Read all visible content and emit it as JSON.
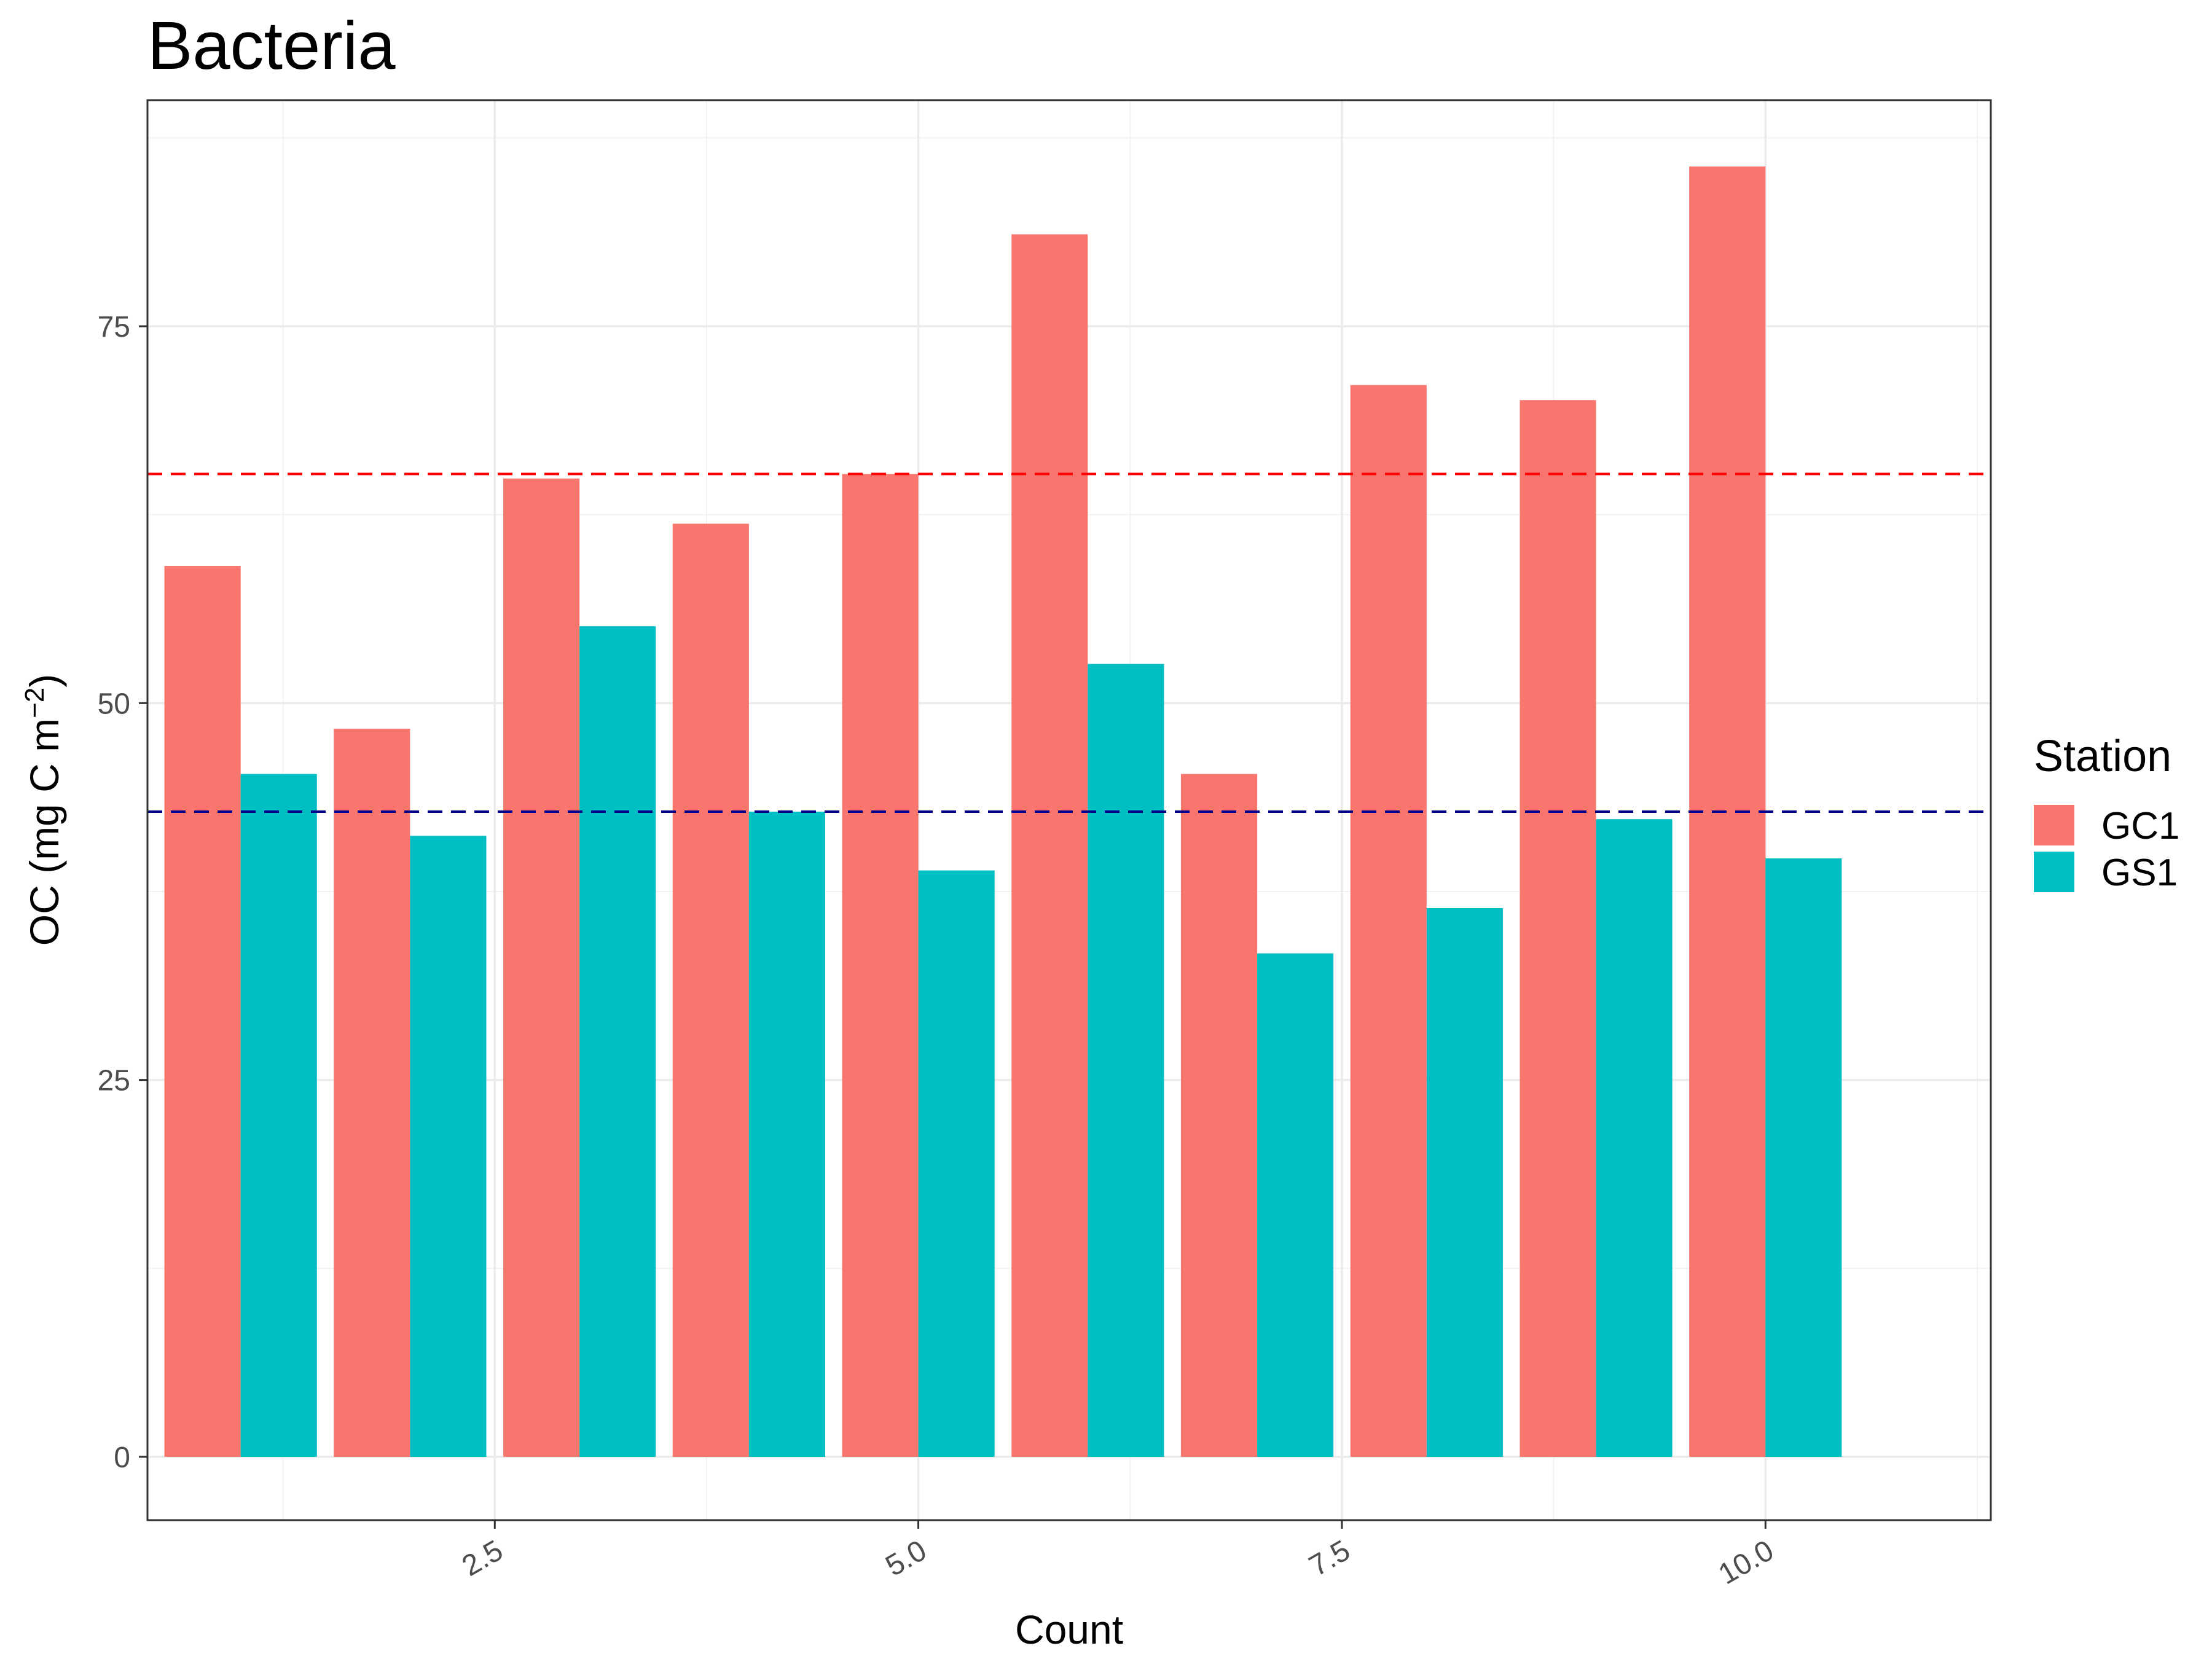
{
  "chart_data": {
    "type": "bar",
    "title": "Bacteria",
    "xlabel": "Count",
    "ylabel_main": "OC (mg C m",
    "ylabel_sup": "−2",
    "ylabel_close": ")",
    "x": [
      1,
      2,
      3,
      4,
      5,
      6,
      7,
      8,
      9,
      10
    ],
    "xlim": [
      0.45,
      11.33
    ],
    "ylim": [
      -4.2,
      90
    ],
    "x_ticks": [
      2.5,
      5.0,
      7.5,
      10.0
    ],
    "x_tick_labels": [
      "2.5",
      "5.0",
      "7.5",
      "10.0"
    ],
    "y_ticks": [
      0,
      25,
      50,
      75
    ],
    "y_tick_labels": [
      "0",
      "25",
      "50",
      "75"
    ],
    "grid": true,
    "series": [
      {
        "name": "GC1",
        "color": "#F8766D",
        "values": [
          59.1,
          48.3,
          64.9,
          61.9,
          65.2,
          81.1,
          45.3,
          71.1,
          70.1,
          85.6
        ]
      },
      {
        "name": "GS1",
        "color": "#00BFC4",
        "values": [
          45.3,
          41.2,
          55.1,
          42.8,
          38.9,
          52.6,
          33.4,
          36.4,
          42.3,
          39.7
        ]
      }
    ],
    "reference_lines": [
      {
        "y": 65.2,
        "color": "#FF0000",
        "style": "dashed"
      },
      {
        "y": 42.8,
        "color": "#00008B",
        "style": "dashed"
      }
    ],
    "legend": {
      "title": "Station",
      "placement": "right"
    }
  }
}
